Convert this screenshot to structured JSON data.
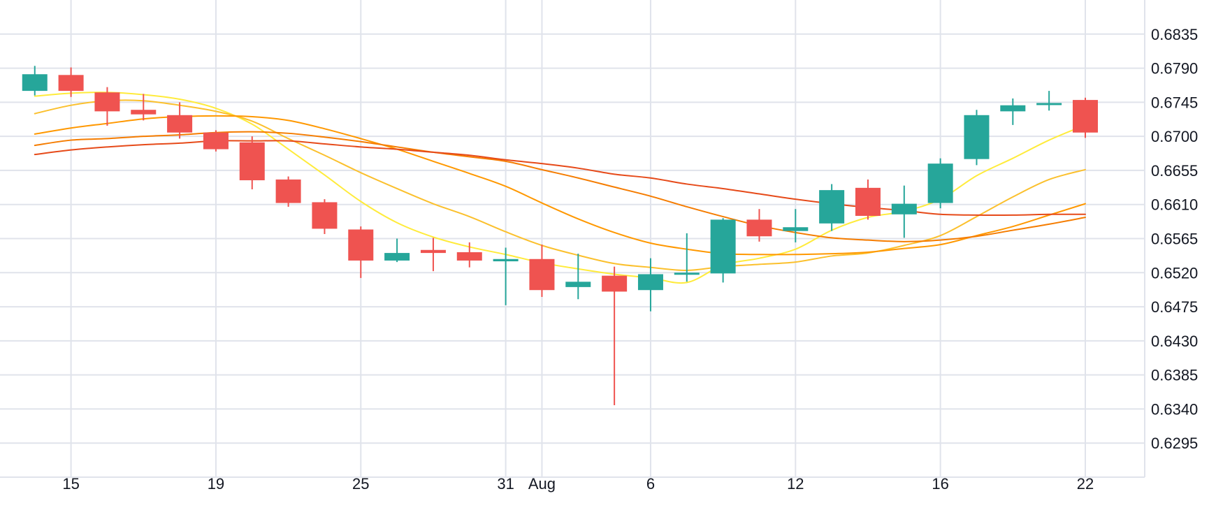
{
  "chart_data": {
    "type": "candlestick",
    "y_ticks": [
      "0.6835",
      "0.6790",
      "0.6745",
      "0.6700",
      "0.6655",
      "0.6610",
      "0.6565",
      "0.6520",
      "0.6475",
      "0.6430",
      "0.6385",
      "0.6340",
      "0.6295"
    ],
    "ylim": [
      0.625,
      0.688
    ],
    "x_ticks": [
      {
        "label": "15",
        "i": 1
      },
      {
        "label": "19",
        "i": 5
      },
      {
        "label": "25",
        "i": 9
      },
      {
        "label": "31",
        "i": 13
      },
      {
        "label": "Aug",
        "i": 14
      },
      {
        "label": "6",
        "i": 17
      },
      {
        "label": "12",
        "i": 21
      },
      {
        "label": "16",
        "i": 25
      },
      {
        "label": "22",
        "i": 29
      }
    ],
    "x_range": [
      -0.96,
      30.64
    ],
    "colors": {
      "up": "#26a69a",
      "down": "#ef5350",
      "grid": "#e0e3eb"
    },
    "candles": [
      {
        "date": "2019-07-12",
        "open": 0.676,
        "high": 0.6793,
        "low": 0.6754,
        "close": 0.6782
      },
      {
        "date": "2019-07-15",
        "open": 0.6781,
        "high": 0.6791,
        "low": 0.6752,
        "close": 0.676
      },
      {
        "date": "2019-07-16",
        "open": 0.6758,
        "high": 0.6765,
        "low": 0.6714,
        "close": 0.6733
      },
      {
        "date": "2019-07-17",
        "open": 0.6735,
        "high": 0.6756,
        "low": 0.6721,
        "close": 0.6729
      },
      {
        "date": "2019-07-18",
        "open": 0.6728,
        "high": 0.6745,
        "low": 0.6697,
        "close": 0.6705
      },
      {
        "date": "2019-07-19",
        "open": 0.6705,
        "high": 0.6708,
        "low": 0.668,
        "close": 0.6683
      },
      {
        "date": "2019-07-22",
        "open": 0.6692,
        "high": 0.67,
        "low": 0.663,
        "close": 0.6642
      },
      {
        "date": "2019-07-23",
        "open": 0.6643,
        "high": 0.6647,
        "low": 0.6607,
        "close": 0.6612
      },
      {
        "date": "2019-07-24",
        "open": 0.6613,
        "high": 0.6617,
        "low": 0.6571,
        "close": 0.6578
      },
      {
        "date": "2019-07-25",
        "open": 0.6577,
        "high": 0.6581,
        "low": 0.6513,
        "close": 0.6536
      },
      {
        "date": "2019-07-26",
        "open": 0.6536,
        "high": 0.6565,
        "low": 0.6534,
        "close": 0.6546
      },
      {
        "date": "2019-07-29",
        "open": 0.655,
        "high": 0.6566,
        "low": 0.6522,
        "close": 0.6546
      },
      {
        "date": "2019-07-30",
        "open": 0.6547,
        "high": 0.656,
        "low": 0.6527,
        "close": 0.6536
      },
      {
        "date": "2019-07-31",
        "open": 0.6535,
        "high": 0.6553,
        "low": 0.6477,
        "close": 0.6538
      },
      {
        "date": "2019-08-01",
        "open": 0.6538,
        "high": 0.6557,
        "low": 0.6488,
        "close": 0.6497
      },
      {
        "date": "2019-08-02",
        "open": 0.6501,
        "high": 0.6545,
        "low": 0.6485,
        "close": 0.6508
      },
      {
        "date": "2019-08-05",
        "open": 0.6516,
        "high": 0.6528,
        "low": 0.6345,
        "close": 0.6495
      },
      {
        "date": "2019-08-06",
        "open": 0.6497,
        "high": 0.6539,
        "low": 0.6469,
        "close": 0.6518
      },
      {
        "date": "2019-08-07",
        "open": 0.652,
        "high": 0.6572,
        "low": 0.6508,
        "close": 0.652
      },
      {
        "date": "2019-08-08",
        "open": 0.6519,
        "high": 0.6592,
        "low": 0.6507,
        "close": 0.659
      },
      {
        "date": "2019-08-09",
        "open": 0.659,
        "high": 0.6604,
        "low": 0.6561,
        "close": 0.6568
      },
      {
        "date": "2019-08-12",
        "open": 0.6575,
        "high": 0.6604,
        "low": 0.656,
        "close": 0.658
      },
      {
        "date": "2019-08-13",
        "open": 0.6585,
        "high": 0.6637,
        "low": 0.6575,
        "close": 0.6629
      },
      {
        "date": "2019-08-14",
        "open": 0.6632,
        "high": 0.6643,
        "low": 0.659,
        "close": 0.6595
      },
      {
        "date": "2019-08-15",
        "open": 0.6597,
        "high": 0.6635,
        "low": 0.6566,
        "close": 0.6611
      },
      {
        "date": "2019-08-16",
        "open": 0.6612,
        "high": 0.6671,
        "low": 0.6605,
        "close": 0.6664
      },
      {
        "date": "2019-08-19",
        "open": 0.667,
        "high": 0.6735,
        "low": 0.6662,
        "close": 0.6728
      },
      {
        "date": "2019-08-20",
        "open": 0.6733,
        "high": 0.675,
        "low": 0.6715,
        "close": 0.6741
      },
      {
        "date": "2019-08-21",
        "open": 0.6743,
        "high": 0.676,
        "low": 0.6734,
        "close": 0.6744
      },
      {
        "date": "2019-08-22",
        "open": 0.6748,
        "high": 0.6751,
        "low": 0.6698,
        "close": 0.6705
      }
    ],
    "moving_averages": [
      {
        "color": "#ffeb3b",
        "values": [
          0.6753,
          0.6757,
          0.6758,
          0.6755,
          0.6749,
          0.6737,
          0.6716,
          0.6683,
          0.6649,
          0.6614,
          0.6586,
          0.6567,
          0.6554,
          0.6544,
          0.6533,
          0.6525,
          0.6518,
          0.6513,
          0.6507,
          0.653,
          0.6539,
          0.6551,
          0.6576,
          0.6593,
          0.6601,
          0.6617,
          0.6648,
          0.6671,
          0.6695,
          0.6715
        ]
      },
      {
        "color": "#fbc02d",
        "values": [
          0.673,
          0.6741,
          0.6747,
          0.6747,
          0.6741,
          0.6733,
          0.672,
          0.6697,
          0.6675,
          0.6652,
          0.6631,
          0.6611,
          0.6594,
          0.6574,
          0.6556,
          0.6543,
          0.6532,
          0.6527,
          0.6523,
          0.6528,
          0.6531,
          0.6534,
          0.6542,
          0.6546,
          0.6556,
          0.6569,
          0.6594,
          0.662,
          0.6643,
          0.6656
        ]
      },
      {
        "color": "#ff9800",
        "values": [
          0.6703,
          0.6711,
          0.6717,
          0.6723,
          0.6726,
          0.6727,
          0.6726,
          0.6721,
          0.671,
          0.6697,
          0.6683,
          0.6667,
          0.6651,
          0.6634,
          0.6612,
          0.6591,
          0.6573,
          0.6559,
          0.6551,
          0.6545,
          0.6544,
          0.6544,
          0.6545,
          0.6547,
          0.6552,
          0.6557,
          0.6569,
          0.6581,
          0.6596,
          0.6611
        ]
      },
      {
        "color": "#f57c00",
        "values": [
          0.6688,
          0.6695,
          0.6697,
          0.67,
          0.6702,
          0.6705,
          0.6706,
          0.6704,
          0.6699,
          0.6693,
          0.6686,
          0.6679,
          0.6673,
          0.6667,
          0.6656,
          0.6645,
          0.6633,
          0.6621,
          0.6607,
          0.6594,
          0.6582,
          0.6573,
          0.6566,
          0.6563,
          0.6561,
          0.6563,
          0.6568,
          0.6576,
          0.6584,
          0.6593
        ]
      },
      {
        "color": "#e64a19",
        "values": [
          0.6676,
          0.6682,
          0.6686,
          0.6689,
          0.6691,
          0.6694,
          0.6694,
          0.6694,
          0.669,
          0.6686,
          0.6683,
          0.6679,
          0.6675,
          0.6669,
          0.6664,
          0.6658,
          0.665,
          0.6645,
          0.6637,
          0.6631,
          0.6624,
          0.6617,
          0.6611,
          0.6606,
          0.6602,
          0.6597,
          0.6596,
          0.6596,
          0.6597,
          0.6597
        ]
      }
    ]
  }
}
